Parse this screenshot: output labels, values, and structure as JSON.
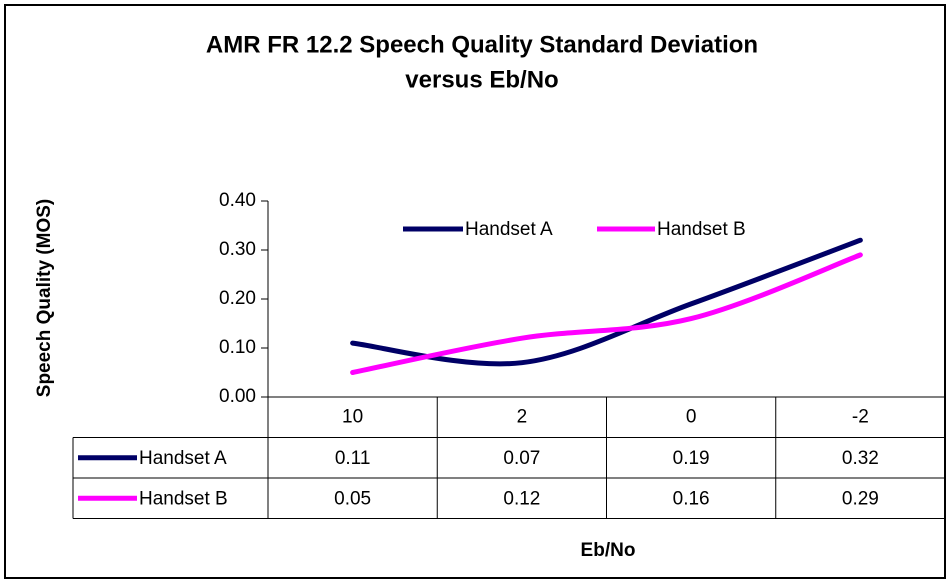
{
  "chart_data": {
    "type": "line",
    "title": [
      "AMR FR 12.2 Speech Quality Standard Deviation",
      "versus Eb/No"
    ],
    "x_label": "Eb/No",
    "y_label": "Speech Quality (MOS)",
    "categories": [
      "10",
      "2",
      "0",
      "-2"
    ],
    "series": [
      {
        "name": "Handset A",
        "color": "#000066",
        "values": [
          0.11,
          0.07,
          0.19,
          0.32
        ]
      },
      {
        "name": "Handset B",
        "color": "#ff00ff",
        "values": [
          0.05,
          0.12,
          0.16,
          0.29
        ]
      }
    ],
    "ylim": [
      0,
      0.4
    ],
    "yticks": [
      {
        "value": 0,
        "label": "0.00"
      },
      {
        "value": 0.1,
        "label": "0.10"
      },
      {
        "value": 0.2,
        "label": "0.20"
      },
      {
        "value": 0.3,
        "label": "0.30"
      },
      {
        "value": 0.4,
        "label": "0.40"
      }
    ],
    "data_table": true,
    "smooth": true
  }
}
